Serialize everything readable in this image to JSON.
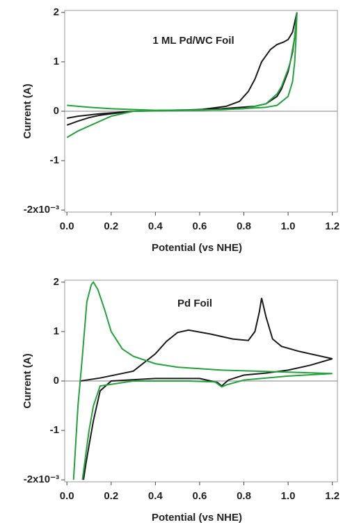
{
  "chart_data": [
    {
      "type": "line",
      "title": "1 ML Pd/WC Foil",
      "xlabel": "Potential (vs NHE)",
      "ylabel": "Current (A)",
      "xlim": [
        -0.01,
        1.223
      ],
      "ylim": [
        -2.04,
        2.04
      ],
      "xticks": [
        {
          "value": 0,
          "label": "0.0"
        },
        0.2,
        0.4,
        0.6,
        0.8,
        {
          "value": 1,
          "label": "1.0"
        },
        1.2
      ],
      "yticks": [
        {
          "value": -2,
          "label": "-2x10⁻³"
        },
        -1,
        0,
        1,
        2
      ],
      "zero_line": true,
      "series": [
        {
          "color": "#1a1a1a",
          "x": [
            0.0,
            0.05,
            0.1,
            0.15,
            0.2,
            0.3,
            0.45,
            0.6,
            0.72,
            0.78,
            0.82,
            0.85,
            0.88,
            0.92,
            0.95,
            0.98,
            1.0,
            1.02,
            1.035,
            1.04,
            1.03,
            1.02,
            1.0,
            0.97,
            0.95,
            0.9,
            0.85,
            0.7,
            0.5,
            0.3,
            0.15,
            0.05,
            0.0
          ],
          "values": [
            -0.28,
            -0.2,
            -0.13,
            -0.08,
            -0.05,
            0.0,
            0.02,
            0.03,
            0.1,
            0.2,
            0.4,
            0.65,
            1.0,
            1.25,
            1.35,
            1.4,
            1.45,
            1.6,
            1.9,
            2.0,
            1.5,
            1.2,
            0.8,
            0.45,
            0.3,
            0.15,
            0.1,
            0.05,
            0.02,
            0.0,
            -0.05,
            -0.1,
            -0.14
          ]
        },
        {
          "color": "#22a33a",
          "x": [
            0.0,
            0.05,
            0.1,
            0.15,
            0.2,
            0.3,
            0.45,
            0.6,
            0.8,
            0.9,
            0.95,
            0.97,
            1.0,
            1.01,
            1.03,
            1.04,
            1.035,
            1.03,
            1.02,
            1.0,
            0.95,
            0.9,
            0.7,
            0.4,
            0.2,
            0.1,
            0.05,
            0.0
          ],
          "values": [
            -0.53,
            -0.4,
            -0.3,
            -0.2,
            -0.1,
            0.0,
            0.01,
            0.02,
            0.05,
            0.15,
            0.35,
            0.5,
            0.85,
            1.0,
            1.5,
            2.0,
            1.4,
            1.0,
            0.6,
            0.3,
            0.12,
            0.08,
            0.03,
            0.02,
            0.05,
            0.08,
            0.1,
            0.12
          ]
        }
      ]
    },
    {
      "type": "line",
      "title": "Pd Foil",
      "xlabel": "Potential (vs NHE)",
      "ylabel": "Current (A)",
      "xlim": [
        -0.01,
        1.223
      ],
      "ylim": [
        -2.04,
        2.04
      ],
      "xticks": [
        {
          "value": 0,
          "label": "0.0"
        },
        0.2,
        0.4,
        0.6,
        0.8,
        {
          "value": 1,
          "label": "1.0"
        },
        1.2
      ],
      "yticks": [
        {
          "value": -2,
          "label": "-2x10⁻³"
        },
        -1,
        0,
        1,
        2
      ],
      "zero_line": true,
      "series": [
        {
          "color": "#1a1a1a",
          "x": [
            0.06,
            0.15,
            0.3,
            0.4,
            0.45,
            0.5,
            0.55,
            0.65,
            0.75,
            0.82,
            0.85,
            0.87,
            0.88,
            0.9,
            0.93,
            0.97,
            1.05,
            1.2,
            1.1,
            1.0,
            0.9,
            0.8,
            0.73,
            0.7,
            0.68,
            0.6,
            0.4,
            0.2,
            0.15,
            0.12,
            0.1,
            0.085,
            0.075
          ],
          "values": [
            0.0,
            0.06,
            0.2,
            0.55,
            0.8,
            0.98,
            1.03,
            0.95,
            0.85,
            0.82,
            1.0,
            1.4,
            1.68,
            1.3,
            0.85,
            0.7,
            0.6,
            0.45,
            0.32,
            0.22,
            0.16,
            0.12,
            0.02,
            -0.1,
            -0.03,
            0.05,
            0.05,
            0.0,
            -0.2,
            -0.8,
            -1.3,
            -1.7,
            -2.0
          ]
        },
        {
          "color": "#22a33a",
          "x": [
            0.03,
            0.05,
            0.07,
            0.09,
            0.11,
            0.12,
            0.14,
            0.17,
            0.2,
            0.25,
            0.3,
            0.4,
            0.5,
            0.7,
            1.0,
            1.2,
            1.0,
            0.8,
            0.72,
            0.7,
            0.67,
            0.55,
            0.3,
            0.15,
            0.12,
            0.1,
            0.085,
            0.07
          ],
          "values": [
            -2.0,
            -0.5,
            0.5,
            1.6,
            1.95,
            2.0,
            1.85,
            1.45,
            1.0,
            0.65,
            0.5,
            0.35,
            0.28,
            0.22,
            0.18,
            0.15,
            0.1,
            0.02,
            -0.08,
            -0.12,
            -0.02,
            0.0,
            0.0,
            -0.1,
            -0.5,
            -1.0,
            -1.5,
            -2.0
          ]
        }
      ]
    }
  ]
}
